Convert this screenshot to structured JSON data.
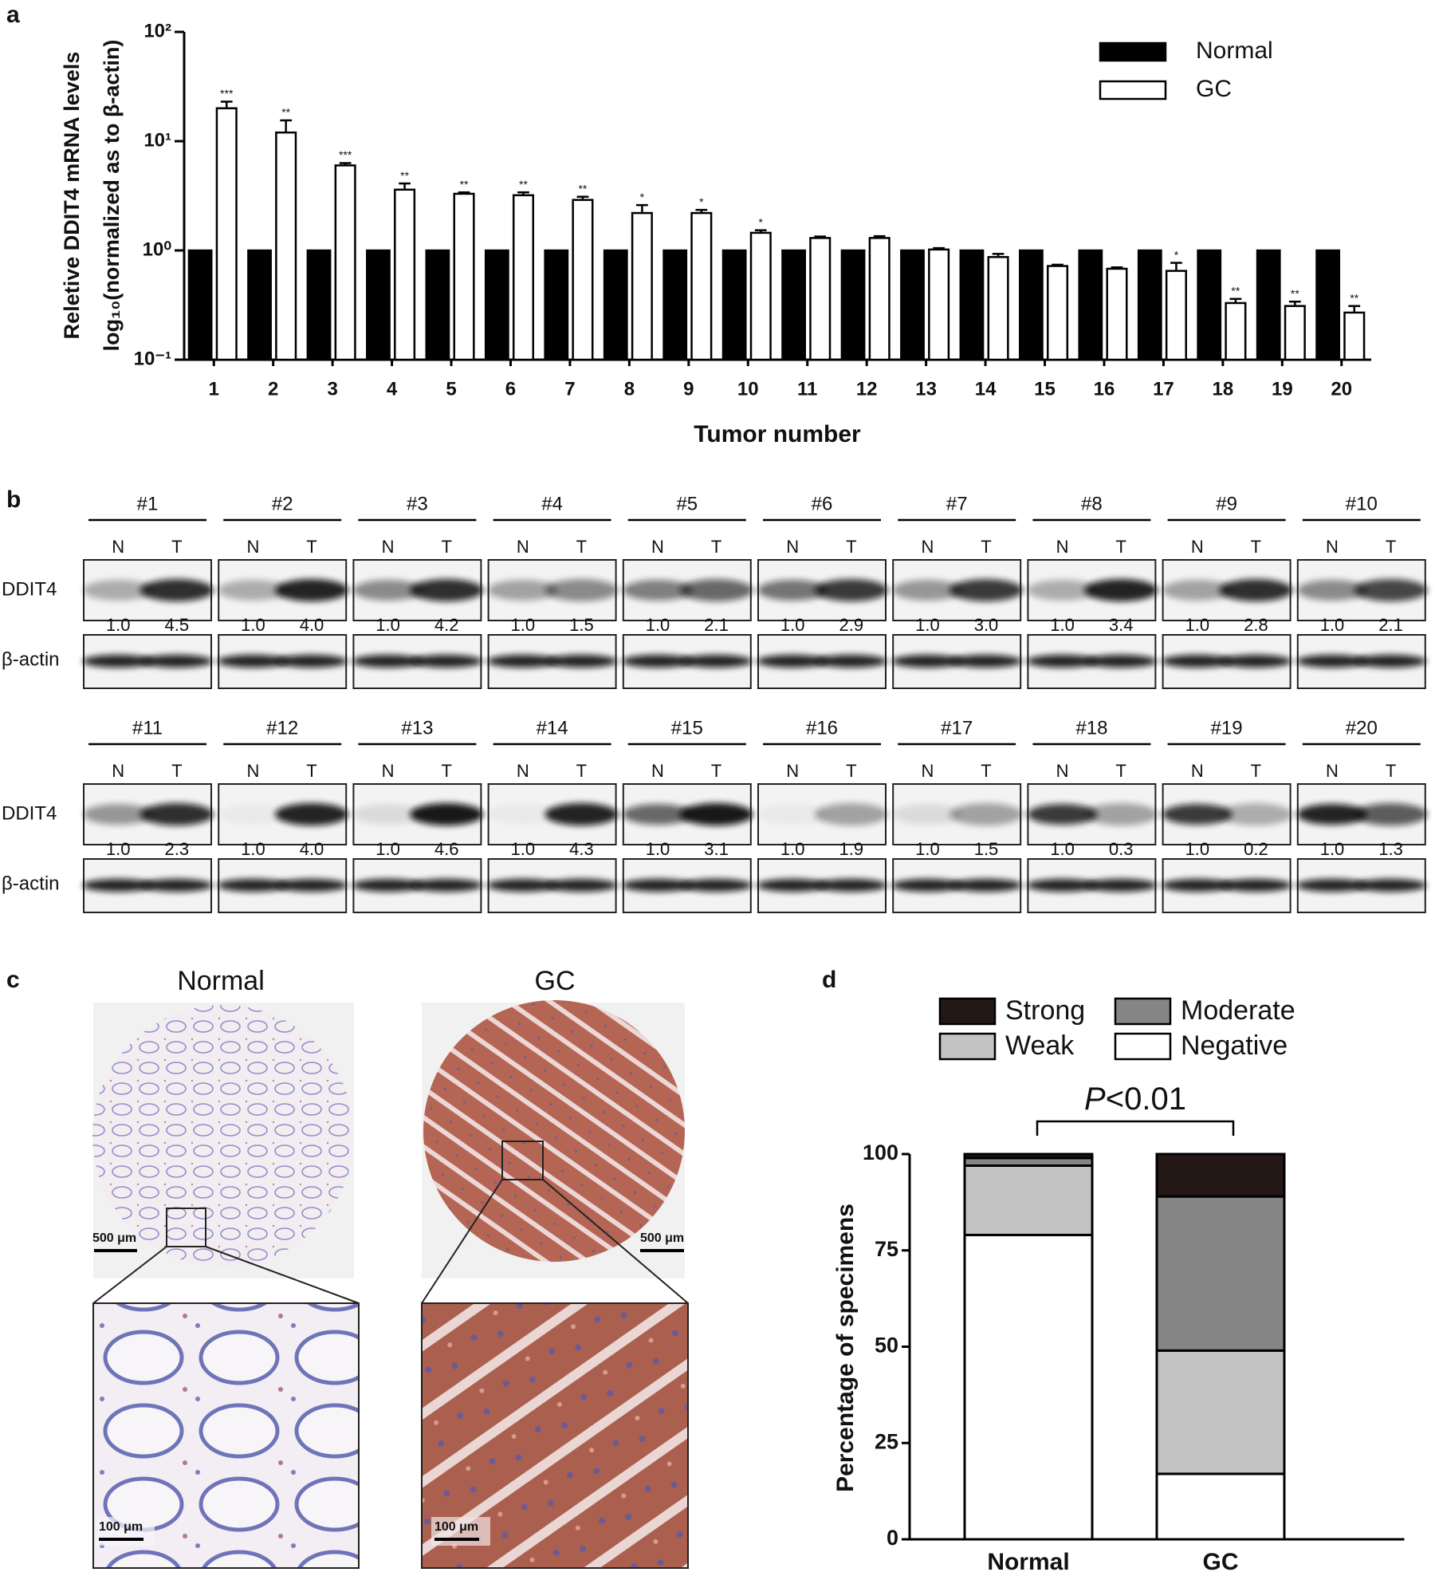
{
  "panel_labels": [
    "a",
    "b",
    "c",
    "d"
  ],
  "chart_data": [
    {
      "type": "bar",
      "x_label": "Tumor number",
      "y_label": [
        "Reletive DDIT4 mRNA levels",
        "log₁₀(normalized as to β-actin)"
      ],
      "categories": [
        "1",
        "2",
        "3",
        "4",
        "5",
        "6",
        "7",
        "8",
        "9",
        "10",
        "11",
        "12",
        "13",
        "14",
        "15",
        "16",
        "17",
        "18",
        "19",
        "20"
      ],
      "series": [
        {
          "name": "Normal",
          "color": "#000000",
          "values": [
            1,
            1,
            1,
            1,
            1,
            1,
            1,
            1,
            1,
            1,
            1,
            1,
            1,
            1,
            1,
            1,
            1,
            1,
            1,
            1
          ]
        },
        {
          "name": "GC",
          "color": "#ffffff",
          "values": [
            20,
            12,
            6,
            3.6,
            3.3,
            3.2,
            2.9,
            2.2,
            2.2,
            1.45,
            1.3,
            1.3,
            1.02,
            0.87,
            0.72,
            0.68,
            0.65,
            0.33,
            0.31,
            0.27
          ],
          "errors": [
            3,
            3.5,
            0.3,
            0.5,
            0.1,
            0.2,
            0.2,
            0.4,
            0.15,
            0.08,
            0.04,
            0.05,
            0.03,
            0.06,
            0.02,
            0.02,
            0.12,
            0.03,
            0.03,
            0.04
          ],
          "annotations": [
            "***",
            "**",
            "***",
            "**",
            "**",
            "**",
            "**",
            "*",
            "*",
            "*",
            null,
            null,
            null,
            null,
            null,
            null,
            "*",
            "**",
            "**",
            "**"
          ]
        }
      ],
      "ylim": [
        0.1,
        100
      ],
      "yticks": [
        {
          "value": 0.1,
          "label": "10⁻¹"
        },
        {
          "value": 1,
          "label": "10⁰"
        },
        {
          "value": 10,
          "label": "10¹"
        },
        {
          "value": 100,
          "label": "10²"
        }
      ],
      "log_scale": true,
      "legend": "top-right"
    },
    {
      "type": "stacked_bar",
      "y_label": "Percentage of specimens",
      "categories": [
        "Normal",
        "GC"
      ],
      "series": [
        {
          "name": "Negative",
          "color": "#ffffff",
          "values": [
            79,
            17
          ]
        },
        {
          "name": "Weak",
          "color": "#c3c3c3",
          "values": [
            18,
            32
          ]
        },
        {
          "name": "Moderate",
          "color": "#858585",
          "values": [
            2,
            40
          ]
        },
        {
          "name": "Strong",
          "color": "#231815",
          "values": [
            1,
            11
          ]
        }
      ],
      "ylim": [
        0,
        100
      ],
      "yticks": [
        0,
        25,
        50,
        75,
        100
      ],
      "annotation": {
        "italic": "P",
        "text": "<0.01"
      },
      "legend": "top"
    }
  ],
  "western_blot": {
    "row_labels": [
      "DDIT4",
      "β-actin"
    ],
    "lane_labels": [
      "N",
      "T"
    ],
    "samples": [
      {
        "label": "#1",
        "ratios": [
          "1.0",
          "4.5"
        ]
      },
      {
        "label": "#2",
        "ratios": [
          "1.0",
          "4.0"
        ]
      },
      {
        "label": "#3",
        "ratios": [
          "1.0",
          "4.2"
        ]
      },
      {
        "label": "#4",
        "ratios": [
          "1.0",
          "1.5"
        ]
      },
      {
        "label": "#5",
        "ratios": [
          "1.0",
          "2.1"
        ]
      },
      {
        "label": "#6",
        "ratios": [
          "1.0",
          "2.9"
        ]
      },
      {
        "label": "#7",
        "ratios": [
          "1.0",
          "3.0"
        ]
      },
      {
        "label": "#8",
        "ratios": [
          "1.0",
          "3.4"
        ]
      },
      {
        "label": "#9",
        "ratios": [
          "1.0",
          "2.8"
        ]
      },
      {
        "label": "#10",
        "ratios": [
          "1.0",
          "2.1"
        ]
      },
      {
        "label": "#11",
        "ratios": [
          "1.0",
          "2.3"
        ]
      },
      {
        "label": "#12",
        "ratios": [
          "1.0",
          "4.0"
        ]
      },
      {
        "label": "#13",
        "ratios": [
          "1.0",
          "4.6"
        ]
      },
      {
        "label": "#14",
        "ratios": [
          "1.0",
          "4.3"
        ]
      },
      {
        "label": "#15",
        "ratios": [
          "1.0",
          "3.1"
        ]
      },
      {
        "label": "#16",
        "ratios": [
          "1.0",
          "1.9"
        ]
      },
      {
        "label": "#17",
        "ratios": [
          "1.0",
          "1.5"
        ]
      },
      {
        "label": "#18",
        "ratios": [
          "1.0",
          "0.3"
        ]
      },
      {
        "label": "#19",
        "ratios": [
          "1.0",
          "0.2"
        ]
      },
      {
        "label": "#20",
        "ratios": [
          "1.0",
          "1.3"
        ]
      }
    ]
  },
  "ihc": {
    "groups": [
      {
        "title": "Normal",
        "scale_bar": "500 μm",
        "zoom_scale_bar": "100 μm"
      },
      {
        "title": "GC",
        "scale_bar": "500 μm",
        "zoom_scale_bar": "100 μm"
      }
    ]
  }
}
